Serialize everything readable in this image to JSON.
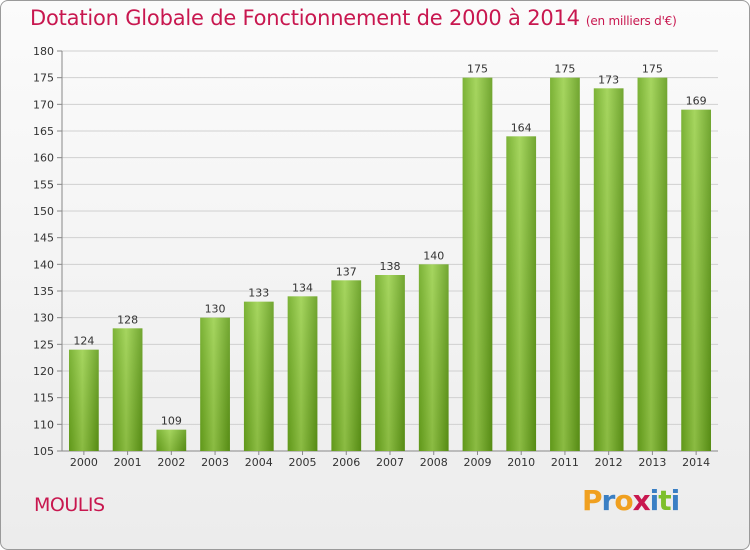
{
  "chart_data": {
    "type": "bar",
    "title": "Dotation Globale de Fonctionnement de 2000 à 2014",
    "unit_label": "(en milliers d'€)",
    "categories": [
      "2000",
      "2001",
      "2002",
      "2003",
      "2004",
      "2005",
      "2006",
      "2007",
      "2008",
      "2009",
      "2010",
      "2011",
      "2012",
      "2013",
      "2014"
    ],
    "values": [
      124,
      128,
      109,
      130,
      133,
      134,
      137,
      138,
      140,
      175,
      164,
      175,
      173,
      175,
      169
    ],
    "ylim": [
      105,
      180
    ],
    "yticks": [
      105,
      110,
      115,
      120,
      125,
      130,
      135,
      140,
      145,
      150,
      155,
      160,
      165,
      170,
      175,
      180
    ],
    "grid": true,
    "bar_color": "#7dbf2c",
    "title_color": "#c8174f"
  },
  "commune": "MOULIS",
  "logo": {
    "letters": [
      "P",
      "r",
      "o",
      "x",
      "i",
      "t",
      "i"
    ],
    "colors": [
      "#f0a020",
      "#3a7fc4",
      "#f0a020",
      "#c8174f",
      "#3a7fc4",
      "#7dbf2c",
      "#3a7fc4"
    ]
  }
}
